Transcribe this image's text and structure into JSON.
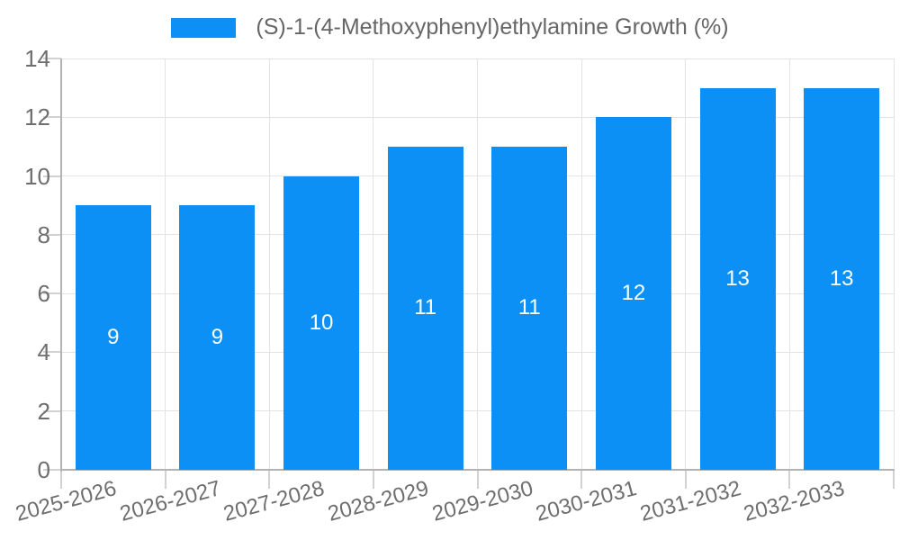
{
  "chart_data": {
    "type": "bar",
    "title": "",
    "legend": {
      "position": "top"
    },
    "series": [
      {
        "name": "(S)-1-(4-Methoxyphenyl)ethylamine Growth (%)",
        "values": [
          9,
          9,
          10,
          11,
          11,
          12,
          13,
          13
        ],
        "color": "#0c90f5"
      }
    ],
    "categories": [
      "2025-2026",
      "2026-2027",
      "2027-2028",
      "2028-2029",
      "2029-2030",
      "2030-2031",
      "2031-2032",
      "2032-2033"
    ],
    "value_labels": [
      "9",
      "9",
      "10",
      "11",
      "11",
      "12",
      "13",
      "13"
    ],
    "xlabel": "",
    "ylabel": "",
    "ylim": [
      0,
      14
    ],
    "yticks": [
      0,
      2,
      4,
      6,
      8,
      10,
      12,
      14
    ],
    "grid": true,
    "x_label_rotation_deg": -15,
    "colors": {
      "bar": "#0c90f5",
      "bar_label": "#ffffff",
      "axis_line": "#b3b3b3",
      "gridline": "#e3e3e3",
      "tick_mark": "#d2d2d2",
      "tick_text": "#6e6e6e",
      "legend_text": "#666666",
      "background": "#ffffff"
    }
  }
}
